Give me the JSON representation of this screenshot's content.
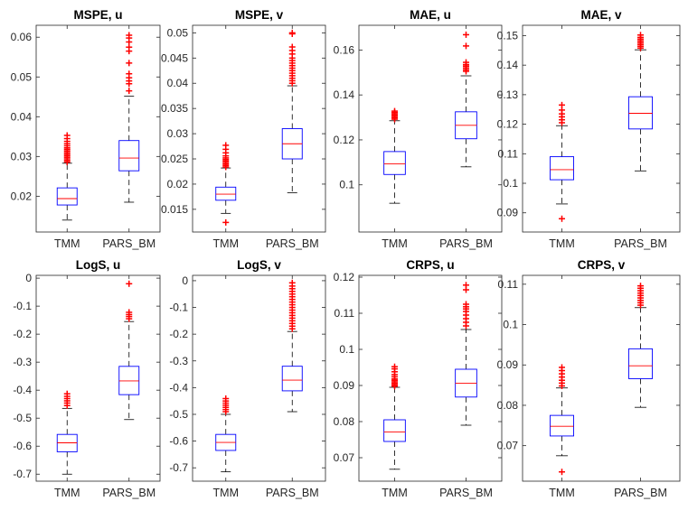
{
  "chart_data": [
    {
      "type": "box",
      "title": "MSPE, u",
      "categories": [
        "TMM",
        "PARS_BM"
      ],
      "ylim": [
        0.011,
        0.063
      ],
      "yticks": [
        0.02,
        0.03,
        0.04,
        0.05,
        0.06
      ],
      "ytick_labels": [
        "0.02",
        "0.03",
        "0.04",
        "0.05",
        "0.06"
      ],
      "boxes": [
        {
          "whisker_low": 0.014,
          "q1": 0.0178,
          "median": 0.0194,
          "q3": 0.0221,
          "whisker_high": 0.0283,
          "outliers": [
            0.0286,
            0.029,
            0.0294,
            0.0298,
            0.0302,
            0.0306,
            0.031,
            0.0314,
            0.0318,
            0.0322,
            0.0327,
            0.0332,
            0.0338,
            0.0345,
            0.0353
          ]
        },
        {
          "whisker_low": 0.0185,
          "q1": 0.0264,
          "median": 0.0296,
          "q3": 0.034,
          "whisker_high": 0.0452,
          "outliers": [
            0.0465,
            0.0483,
            0.049,
            0.0498,
            0.0508,
            0.0535,
            0.0565,
            0.0575,
            0.0588,
            0.0598,
            0.0605
          ]
        }
      ]
    },
    {
      "type": "box",
      "title": "MSPE, v",
      "categories": [
        "TMM",
        "PARS_BM"
      ],
      "ylim": [
        0.0105,
        0.0515
      ],
      "yticks": [
        0.015,
        0.02,
        0.025,
        0.03,
        0.035,
        0.04,
        0.045,
        0.05
      ],
      "ytick_labels": [
        "0.015",
        "0.02",
        "0.025",
        "0.03",
        "0.035",
        "0.04",
        "0.045",
        "0.05"
      ],
      "boxes": [
        {
          "whisker_low": 0.0142,
          "q1": 0.0168,
          "median": 0.018,
          "q3": 0.0194,
          "whisker_high": 0.0232,
          "outliers": [
            0.0124,
            0.0234,
            0.0237,
            0.024,
            0.0243,
            0.0246,
            0.0249,
            0.0252,
            0.0256,
            0.0262,
            0.0269,
            0.0277
          ]
        },
        {
          "whisker_low": 0.0183,
          "q1": 0.025,
          "median": 0.028,
          "q3": 0.031,
          "whisker_high": 0.0395,
          "outliers": [
            0.04,
            0.0405,
            0.041,
            0.0415,
            0.042,
            0.0425,
            0.043,
            0.0435,
            0.044,
            0.0445,
            0.045,
            0.0458,
            0.0465,
            0.0472,
            0.0498,
            0.05
          ]
        }
      ]
    },
    {
      "type": "box",
      "title": "MAE, u",
      "categories": [
        "TMM",
        "PARS_BM"
      ],
      "ylim": [
        0.079,
        0.171
      ],
      "yticks": [
        0.1,
        0.12,
        0.14,
        0.16
      ],
      "ytick_labels": [
        "0.1",
        "0.12",
        "0.14",
        "0.16"
      ],
      "boxes": [
        {
          "whisker_low": 0.0918,
          "q1": 0.1046,
          "median": 0.1093,
          "q3": 0.1148,
          "whisker_high": 0.1285,
          "outliers": [
            0.1292,
            0.1298,
            0.1304,
            0.131,
            0.1316,
            0.1322,
            0.1328
          ]
        },
        {
          "whisker_low": 0.108,
          "q1": 0.1205,
          "median": 0.1265,
          "q3": 0.1325,
          "whisker_high": 0.1485,
          "outliers": [
            0.1505,
            0.1512,
            0.152,
            0.1528,
            0.1535,
            0.1545,
            0.1618,
            0.1668
          ]
        }
      ]
    },
    {
      "type": "box",
      "title": "MAE, v",
      "categories": [
        "TMM",
        "PARS_BM"
      ],
      "ylim": [
        0.0835,
        0.1535
      ],
      "yticks": [
        0.09,
        0.1,
        0.11,
        0.12,
        0.13,
        0.14,
        0.15
      ],
      "ytick_labels": [
        "0.09",
        "0.1",
        "0.11",
        "0.12",
        "0.13",
        "0.14",
        "0.15"
      ],
      "boxes": [
        {
          "whisker_low": 0.093,
          "q1": 0.1012,
          "median": 0.1046,
          "q3": 0.109,
          "whisker_high": 0.1195,
          "outliers": [
            0.088,
            0.1205,
            0.1215,
            0.1225,
            0.1235,
            0.1248,
            0.1265
          ]
        },
        {
          "whisker_low": 0.1042,
          "q1": 0.1184,
          "median": 0.1237,
          "q3": 0.1293,
          "whisker_high": 0.1452,
          "outliers": [
            0.1458,
            0.1464,
            0.147,
            0.1476,
            0.1482,
            0.1488,
            0.1494,
            0.1502
          ]
        }
      ]
    },
    {
      "type": "box",
      "title": "LogS, u",
      "categories": [
        "TMM",
        "PARS_BM"
      ],
      "ylim": [
        -0.725,
        0.01
      ],
      "yticks": [
        -0.7,
        -0.6,
        -0.5,
        -0.4,
        -0.3,
        -0.2,
        -0.1,
        0
      ],
      "ytick_labels": [
        "-0.7",
        "-0.6",
        "-0.5",
        "-0.4",
        "-0.3",
        "-0.2",
        "-0.1",
        "0"
      ],
      "boxes": [
        {
          "whisker_low": -0.7,
          "q1": -0.62,
          "median": -0.588,
          "q3": -0.558,
          "whisker_high": -0.465,
          "outliers": [
            -0.455,
            -0.446,
            -0.438,
            -0.43,
            -0.422,
            -0.413
          ]
        },
        {
          "whisker_low": -0.505,
          "q1": -0.416,
          "median": -0.367,
          "q3": -0.315,
          "whisker_high": -0.155,
          "outliers": [
            -0.145,
            -0.137,
            -0.13,
            -0.122,
            -0.02
          ]
        }
      ]
    },
    {
      "type": "box",
      "title": "LogS, v",
      "categories": [
        "TMM",
        "PARS_BM"
      ],
      "ylim": [
        -0.75,
        0.02
      ],
      "yticks": [
        -0.7,
        -0.6,
        -0.5,
        -0.4,
        -0.3,
        -0.2,
        -0.1,
        0
      ],
      "ytick_labels": [
        "-0.7",
        "-0.6",
        "-0.5",
        "-0.4",
        "-0.3",
        "-0.2",
        "-0.1",
        "0"
      ],
      "boxes": [
        {
          "whisker_low": -0.715,
          "q1": -0.635,
          "median": -0.605,
          "q3": -0.575,
          "whisker_high": -0.5,
          "outliers": [
            -0.49,
            -0.482,
            -0.474,
            -0.466,
            -0.458,
            -0.45,
            -0.441
          ]
        },
        {
          "whisker_low": -0.49,
          "q1": -0.412,
          "median": -0.372,
          "q3": -0.32,
          "whisker_high": -0.19,
          "outliers": [
            -0.18,
            -0.17,
            -0.16,
            -0.15,
            -0.14,
            -0.13,
            -0.12,
            -0.11,
            -0.1,
            -0.09,
            -0.08,
            -0.07,
            -0.06,
            -0.05,
            -0.04,
            -0.03,
            -0.02,
            -0.008
          ]
        }
      ]
    },
    {
      "type": "box",
      "title": "CRPS, u",
      "categories": [
        "TMM",
        "PARS_BM"
      ],
      "ylim": [
        0.0635,
        0.1205
      ],
      "yticks": [
        0.07,
        0.08,
        0.09,
        0.1,
        0.11,
        0.12
      ],
      "ytick_labels": [
        "0.07",
        "0.08",
        "0.09",
        "0.1",
        "0.11",
        "0.12"
      ],
      "boxes": [
        {
          "whisker_low": 0.0668,
          "q1": 0.0745,
          "median": 0.0771,
          "q3": 0.0805,
          "whisker_high": 0.0895,
          "outliers": [
            0.0898,
            0.0902,
            0.0906,
            0.091,
            0.0914,
            0.0918,
            0.0924,
            0.093,
            0.0938,
            0.0946,
            0.0952
          ]
        },
        {
          "whisker_low": 0.079,
          "q1": 0.0868,
          "median": 0.0906,
          "q3": 0.0945,
          "whisker_high": 0.1055,
          "outliers": [
            0.1065,
            0.1075,
            0.1085,
            0.1095,
            0.1105,
            0.1112,
            0.1118,
            0.1125,
            0.1165,
            0.1178
          ]
        }
      ]
    },
    {
      "type": "box",
      "title": "CRPS, v",
      "categories": [
        "TMM",
        "PARS_BM"
      ],
      "ylim": [
        0.0612,
        0.1122
      ],
      "yticks": [
        0.07,
        0.08,
        0.09,
        0.1,
        0.11
      ],
      "ytick_labels": [
        "0.07",
        "0.08",
        "0.09",
        "0.1",
        "0.11"
      ],
      "boxes": [
        {
          "whisker_low": 0.0675,
          "q1": 0.0724,
          "median": 0.0748,
          "q3": 0.0775,
          "whisker_high": 0.0843,
          "outliers": [
            0.0635,
            0.0848,
            0.0855,
            0.0862,
            0.087,
            0.0878,
            0.0886,
            0.0894
          ]
        },
        {
          "whisker_low": 0.0795,
          "q1": 0.0866,
          "median": 0.0898,
          "q3": 0.094,
          "whisker_high": 0.1042,
          "outliers": [
            0.1048,
            0.1054,
            0.106,
            0.1066,
            0.1072,
            0.1078,
            0.1084,
            0.109,
            0.1096
          ]
        }
      ]
    }
  ],
  "colors": {
    "box": "#0000ff",
    "median": "#ff0000",
    "whisker": "#000000",
    "outlier": "#ff0000",
    "axis": "#262626"
  }
}
